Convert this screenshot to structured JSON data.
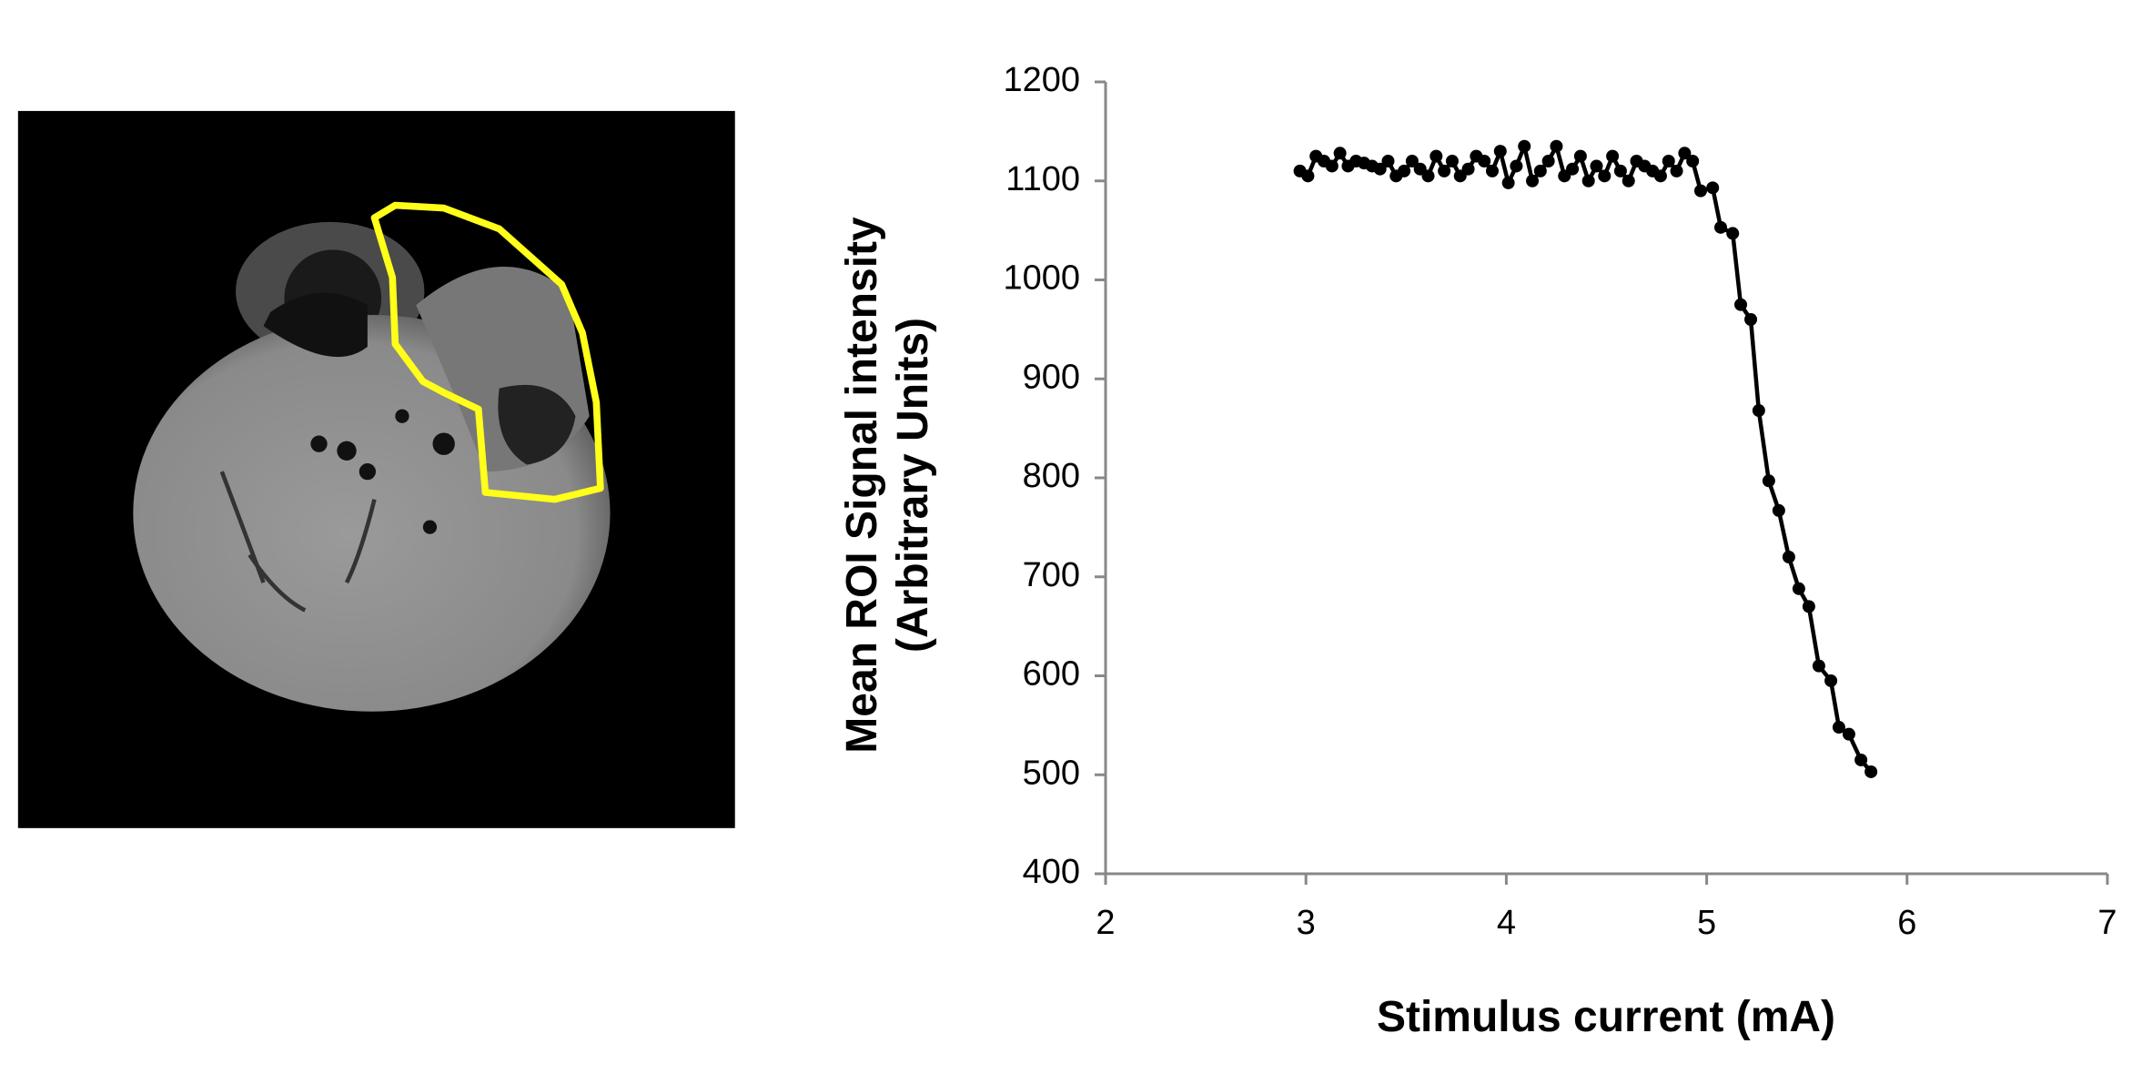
{
  "chart_data": {
    "type": "line",
    "marker": true,
    "color": "#000000",
    "x_label": "Stimulus current (mA)",
    "y_label": [
      "Mean ROI Signal intensity",
      "(Arbitrary Units)"
    ],
    "x": [
      2.97,
      3.01,
      3.05,
      3.09,
      3.13,
      3.17,
      3.21,
      3.25,
      3.29,
      3.33,
      3.37,
      3.41,
      3.45,
      3.49,
      3.53,
      3.57,
      3.61,
      3.65,
      3.69,
      3.73,
      3.77,
      3.81,
      3.85,
      3.89,
      3.93,
      3.97,
      4.01,
      4.05,
      4.09,
      4.13,
      4.17,
      4.21,
      4.25,
      4.29,
      4.33,
      4.37,
      4.41,
      4.45,
      4.49,
      4.53,
      4.57,
      4.61,
      4.65,
      4.69,
      4.73,
      4.77,
      4.81,
      4.85,
      4.89,
      4.93,
      4.97,
      5.03,
      5.07,
      5.13,
      5.17,
      5.22,
      5.26,
      5.31,
      5.36,
      5.41,
      5.46,
      5.51,
      5.56,
      5.62,
      5.66,
      5.71,
      5.77,
      5.82
    ],
    "values": [
      1110,
      1105,
      1125,
      1120,
      1115,
      1128,
      1115,
      1120,
      1118,
      1115,
      1112,
      1120,
      1105,
      1110,
      1120,
      1112,
      1105,
      1125,
      1110,
      1120,
      1105,
      1112,
      1125,
      1120,
      1110,
      1130,
      1098,
      1115,
      1135,
      1100,
      1110,
      1120,
      1135,
      1105,
      1112,
      1125,
      1100,
      1115,
      1105,
      1125,
      1110,
      1100,
      1120,
      1115,
      1110,
      1105,
      1120,
      1110,
      1128,
      1120,
      1090,
      1093,
      1053,
      1047,
      975,
      960,
      868,
      797,
      767,
      720,
      688,
      670,
      610,
      595,
      548,
      541,
      515,
      503
    ],
    "xlim": [
      2,
      7
    ],
    "xticks": [
      2,
      3,
      4,
      5,
      6,
      7
    ],
    "ylim": [
      400,
      1200
    ],
    "yticks": [
      400,
      500,
      600,
      700,
      800,
      900,
      1000,
      1100,
      1200
    ]
  }
}
